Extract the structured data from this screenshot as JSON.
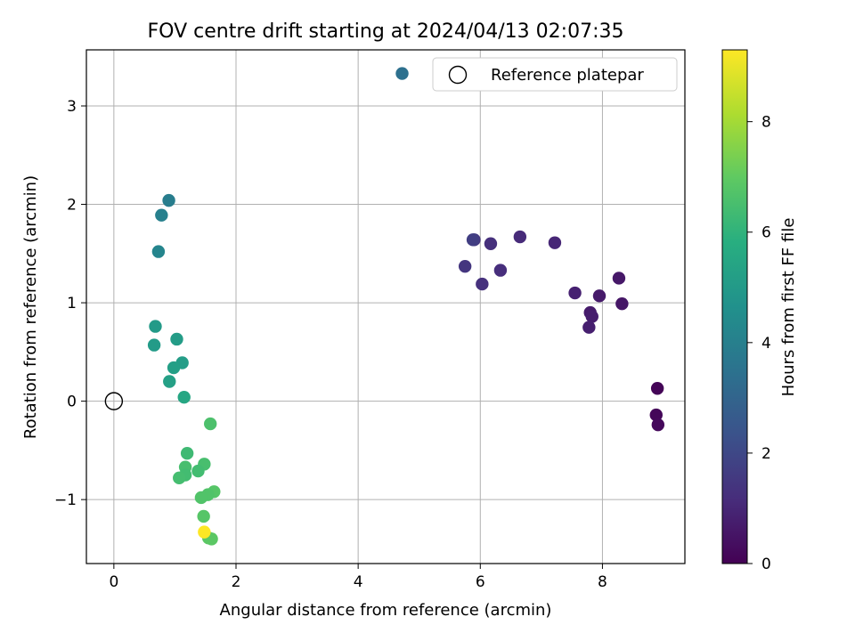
{
  "chart_data": {
    "type": "scatter",
    "title": "FOV centre drift starting at 2024/04/13 02:07:35",
    "xlabel": "Angular distance from reference (arcmin)",
    "ylabel": "Rotation from reference (arcmin)",
    "xlim": [
      -0.45,
      9.35
    ],
    "ylim": [
      -1.65,
      3.57
    ],
    "xticks": [
      0,
      2,
      4,
      6,
      8
    ],
    "yticks": [
      -1,
      0,
      1,
      2,
      3
    ],
    "xtick_labels": [
      "0",
      "2",
      "4",
      "6",
      "8"
    ],
    "ytick_labels": [
      "−1",
      "0",
      "1",
      "2",
      "3"
    ],
    "grid": true,
    "legend": {
      "placement": "top-right",
      "entries": [
        "Reference platepar"
      ]
    },
    "reference_point": {
      "x": 0,
      "y": 0,
      "label": "Reference platepar"
    },
    "colorbar": {
      "label": "Hours from first FF file",
      "colormap": "viridis",
      "range": [
        0,
        9.3
      ],
      "ticks": [
        0,
        2,
        4,
        6,
        8
      ],
      "tick_labels": [
        "0",
        "2",
        "4",
        "6",
        "8"
      ]
    },
    "points": [
      {
        "x": 8.9,
        "y": 0.13,
        "hours": 0.1
      },
      {
        "x": 8.88,
        "y": -0.14,
        "hours": 0.15
      },
      {
        "x": 8.91,
        "y": -0.24,
        "hours": 0.2
      },
      {
        "x": 8.32,
        "y": 0.99,
        "hours": 0.55
      },
      {
        "x": 8.27,
        "y": 1.25,
        "hours": 0.6
      },
      {
        "x": 7.95,
        "y": 1.07,
        "hours": 0.65
      },
      {
        "x": 7.8,
        "y": 0.9,
        "hours": 0.7
      },
      {
        "x": 7.83,
        "y": 0.86,
        "hours": 0.75
      },
      {
        "x": 7.78,
        "y": 0.75,
        "hours": 0.8
      },
      {
        "x": 7.55,
        "y": 1.1,
        "hours": 0.85
      },
      {
        "x": 7.22,
        "y": 1.61,
        "hours": 1.0
      },
      {
        "x": 6.65,
        "y": 1.67,
        "hours": 1.1
      },
      {
        "x": 6.33,
        "y": 1.33,
        "hours": 1.2
      },
      {
        "x": 6.17,
        "y": 1.6,
        "hours": 1.25
      },
      {
        "x": 6.03,
        "y": 1.19,
        "hours": 1.3
      },
      {
        "x": 5.9,
        "y": 1.64,
        "hours": 1.4
      },
      {
        "x": 5.75,
        "y": 1.37,
        "hours": 1.45
      },
      {
        "x": 5.88,
        "y": 1.64,
        "hours": 1.7
      },
      {
        "x": 4.72,
        "y": 3.33,
        "hours": 3.4
      },
      {
        "x": 0.9,
        "y": 2.04,
        "hours": 3.9
      },
      {
        "x": 0.78,
        "y": 1.89,
        "hours": 4.0
      },
      {
        "x": 0.73,
        "y": 1.52,
        "hours": 4.2
      },
      {
        "x": 0.68,
        "y": 0.76,
        "hours": 5.0
      },
      {
        "x": 0.66,
        "y": 0.57,
        "hours": 5.05
      },
      {
        "x": 1.03,
        "y": 0.63,
        "hours": 5.1
      },
      {
        "x": 1.12,
        "y": 0.39,
        "hours": 5.15
      },
      {
        "x": 0.98,
        "y": 0.34,
        "hours": 5.2
      },
      {
        "x": 0.91,
        "y": 0.2,
        "hours": 5.25
      },
      {
        "x": 1.15,
        "y": 0.04,
        "hours": 5.5
      },
      {
        "x": 1.58,
        "y": -0.23,
        "hours": 6.6
      },
      {
        "x": 1.2,
        "y": -0.53,
        "hours": 6.3
      },
      {
        "x": 1.48,
        "y": -0.64,
        "hours": 6.5
      },
      {
        "x": 1.17,
        "y": -0.67,
        "hours": 6.5
      },
      {
        "x": 1.38,
        "y": -0.71,
        "hours": 6.4
      },
      {
        "x": 1.17,
        "y": -0.75,
        "hours": 6.4
      },
      {
        "x": 1.07,
        "y": -0.78,
        "hours": 6.45
      },
      {
        "x": 1.64,
        "y": -0.92,
        "hours": 6.8
      },
      {
        "x": 1.54,
        "y": -0.95,
        "hours": 6.7
      },
      {
        "x": 1.43,
        "y": -0.98,
        "hours": 6.7
      },
      {
        "x": 1.47,
        "y": -1.17,
        "hours": 6.8
      },
      {
        "x": 1.55,
        "y": -1.39,
        "hours": 6.9
      },
      {
        "x": 1.6,
        "y": -1.4,
        "hours": 6.9
      },
      {
        "x": 1.48,
        "y": -1.33,
        "hours": 9.3
      }
    ]
  }
}
